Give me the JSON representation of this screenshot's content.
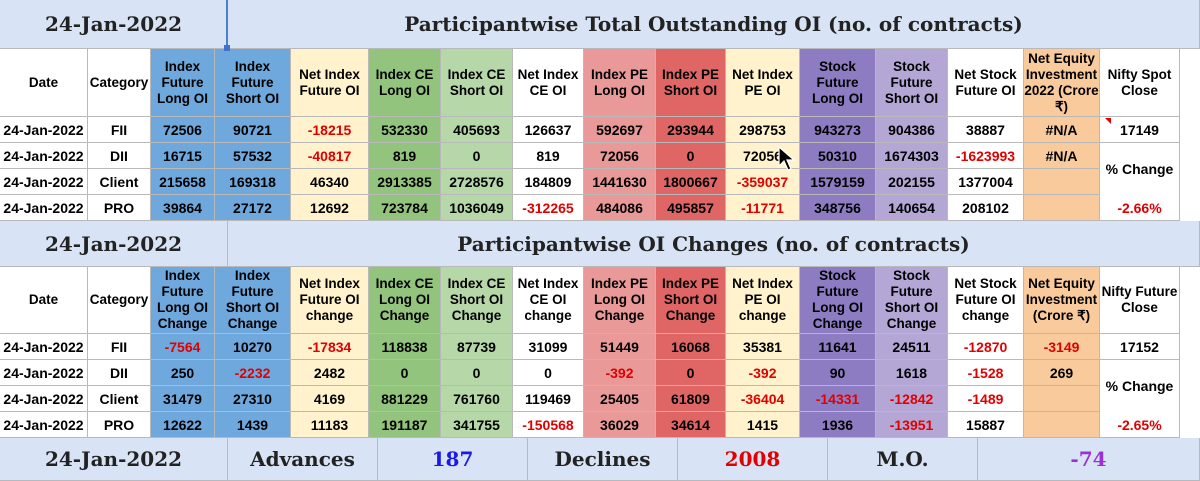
{
  "colors": {
    "date_col": "#ffffff",
    "category_col": "#ffffff",
    "index_future": "#6fa8dc",
    "net_index_future": "#fff2cc",
    "index_ce": "#93c47d",
    "index_ce_short": "#b6d7a8",
    "net_index_ce": "#ffffff",
    "index_pe_long": "#ea9999",
    "index_pe_short": "#e06666",
    "net_index_pe": "#fff2cc",
    "stock_future_long": "#8e7cc3",
    "stock_future_short": "#b4a7d6",
    "net_stock": "#ffffff",
    "net_equity": "#f9cb9c",
    "nifty": "#ffffff",
    "title_band": "#d8e4f5"
  },
  "section1": {
    "date": "24-Jan-2022",
    "title": "Participantwise Total Outstanding OI (no. of contracts)",
    "headers": [
      "Date",
      "Category",
      "Index Future Long OI",
      "Index Future Short OI",
      "Net Index Future OI",
      "Index CE Long OI",
      "Index CE Short OI",
      "Net Index CE OI",
      "Index PE Long OI",
      "Index PE Short OI",
      "Net Index PE OI",
      "Stock Future Long OI",
      "Stock Future Short OI",
      "Net Stock Future OI",
      "Net Equity Investment 2022 (Crore ₹)",
      "Nifty Spot Close"
    ],
    "rows": [
      [
        "24-Jan-2022",
        "FII",
        "72506",
        "90721",
        "-18215",
        "532330",
        "405693",
        "126637",
        "592697",
        "293944",
        "298753",
        "943273",
        "904386",
        "38887",
        "#N/A",
        "17149"
      ],
      [
        "24-Jan-2022",
        "DII",
        "16715",
        "57532",
        "-40817",
        "819",
        "0",
        "819",
        "72056",
        "0",
        "72056",
        "50310",
        "1674303",
        "-1623993",
        "#N/A",
        ""
      ],
      [
        "24-Jan-2022",
        "Client",
        "215658",
        "169318",
        "46340",
        "2913385",
        "2728576",
        "184809",
        "1441630",
        "1800667",
        "-359037",
        "1579159",
        "202155",
        "1377004",
        "",
        ""
      ],
      [
        "24-Jan-2022",
        "PRO",
        "39864",
        "27172",
        "12692",
        "723784",
        "1036049",
        "-312265",
        "484086",
        "495857",
        "-11771",
        "348756",
        "140654",
        "208102",
        "",
        "-2.66%"
      ]
    ],
    "pct_label": "% Change"
  },
  "section2": {
    "date": "24-Jan-2022",
    "title": "Participantwise OI Changes (no. of contracts)",
    "headers": [
      "Date",
      "Category",
      "Index Future Long OI Change",
      "Index Future Short OI Change",
      "Net Index Future OI change",
      "Index CE Long OI Change",
      "Index CE Short OI Change",
      "Net Index CE OI change",
      "Index PE Long OI Change",
      "Index PE Short OI Change",
      "Net Index PE OI change",
      "Stock Future Long OI Change",
      "Stock Future Short OI Change",
      "Net Stock Future OI change",
      "Net Equity Investment (Crore ₹)",
      "Nifty Future Close"
    ],
    "rows": [
      [
        "24-Jan-2022",
        "FII",
        "-7564",
        "10270",
        "-17834",
        "118838",
        "87739",
        "31099",
        "51449",
        "16068",
        "35381",
        "11641",
        "24511",
        "-12870",
        "-3149",
        "17152"
      ],
      [
        "24-Jan-2022",
        "DII",
        "250",
        "-2232",
        "2482",
        "0",
        "0",
        "0",
        "-392",
        "0",
        "-392",
        "90",
        "1618",
        "-1528",
        "269",
        ""
      ],
      [
        "24-Jan-2022",
        "Client",
        "31479",
        "27310",
        "4169",
        "881229",
        "761760",
        "119469",
        "25405",
        "61809",
        "-36404",
        "-14331",
        "-12842",
        "-1489",
        "",
        ""
      ],
      [
        "24-Jan-2022",
        "PRO",
        "12622",
        "1439",
        "11183",
        "191187",
        "341755",
        "-150568",
        "36029",
        "34614",
        "1415",
        "1936",
        "-13951",
        "15887",
        "",
        "-2.65%"
      ]
    ],
    "pct_label": "% Change"
  },
  "footer": {
    "date": "24-Jan-2022",
    "advances_label": "Advances",
    "advances_value": "187",
    "declines_label": "Declines",
    "declines_value": "2008",
    "mo_label": "M.O.",
    "mo_value": "-74"
  }
}
